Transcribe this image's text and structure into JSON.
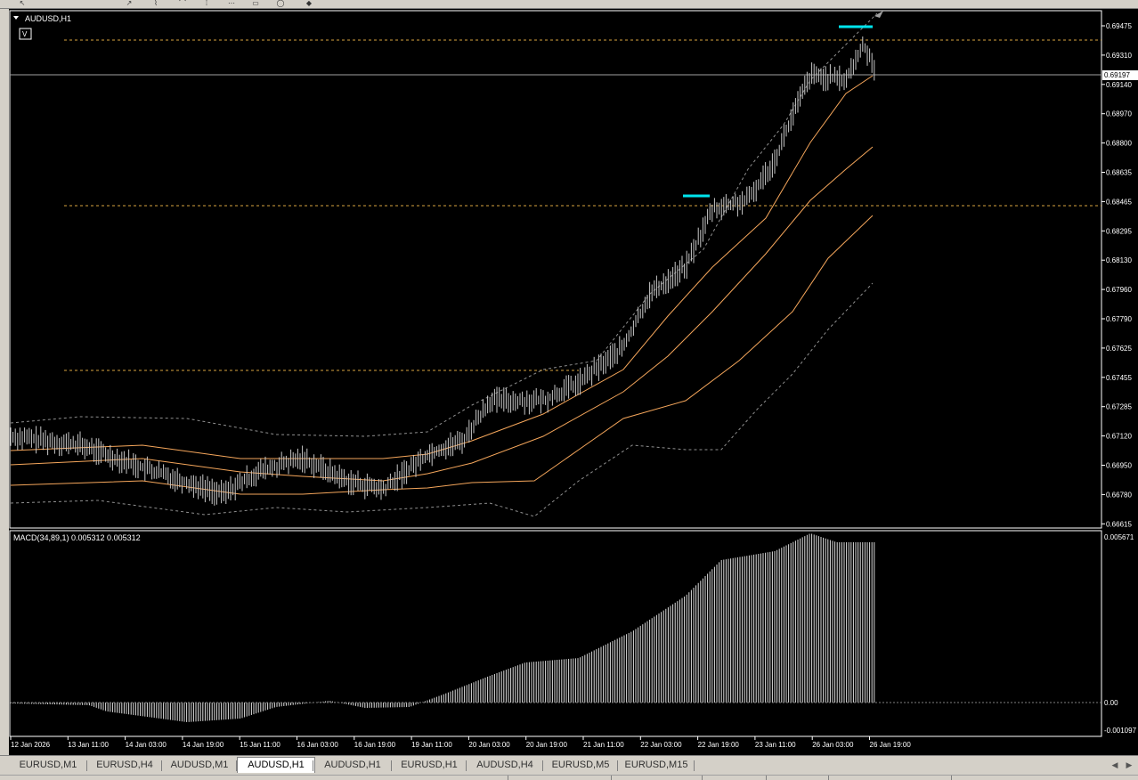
{
  "window": {
    "symbol_label": "AUDUSD,H1",
    "v_button": "V",
    "current_price": "0.69197"
  },
  "price_axis": {
    "labels": [
      "0.69475",
      "0.69310",
      "0.69140",
      "0.68970",
      "0.68800",
      "0.68635",
      "0.68465",
      "0.68295",
      "0.68130",
      "0.67960",
      "0.67790",
      "0.67625",
      "0.67455",
      "0.67285",
      "0.67120",
      "0.66950",
      "0.66780",
      "0.66615"
    ]
  },
  "indicator": {
    "label": "MACD(34,89,1) 0.005312 0.005312",
    "axis_labels": [
      "0.005671",
      "0.00",
      "-0.001097"
    ]
  },
  "time_axis": {
    "labels": [
      "12 Jan 2026",
      "13 Jan 11:00",
      "14 Jan 03:00",
      "14 Jan 19:00",
      "15 Jan 11:00",
      "16 Jan 03:00",
      "16 Jan 19:00",
      "19 Jan 11:00",
      "20 Jan 03:00",
      "20 Jan 19:00",
      "21 Jan 11:00",
      "22 Jan 03:00",
      "22 Jan 19:00",
      "23 Jan 11:00",
      "26 Jan 03:00",
      "26 Jan 19:00"
    ]
  },
  "tabs": [
    "EURUSD,M1",
    "EURUSD,H4",
    "AUDUSD,M1",
    "AUDUSD,H1",
    "AUDUSD,H1",
    "EURUSD,H1",
    "AUDUSD,H4",
    "EURUSD,M5",
    "EURUSD,M15"
  ],
  "active_tab_index": 3,
  "colors": {
    "background": "#000000",
    "candles": "#c8c8c8",
    "bands": "#f5a65b",
    "envelope": "#909090",
    "level_lines": "#d9a441",
    "marker": "#00e5ee",
    "macd_bars": "#dcdcdc"
  },
  "icons": [
    "cursor-icon",
    "line-icon",
    "fibonacci-icon",
    "fibonacci-fan-icon",
    "period-icon",
    "channel-icon",
    "rectangle-icon",
    "ellipse-icon",
    "arrow-icon",
    "tab-scroll-left-icon",
    "tab-scroll-right-icon"
  ]
}
